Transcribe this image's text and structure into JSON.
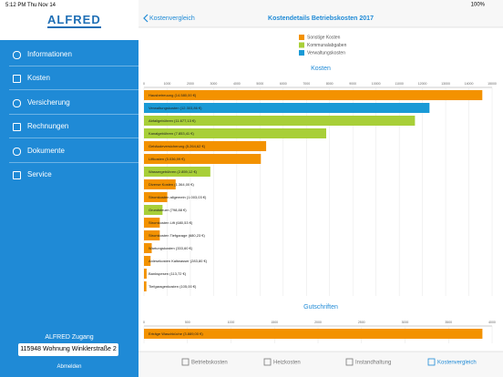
{
  "status_bar": {
    "time": "5:12 PM",
    "date": "Thu Nov 14",
    "battery": "100%"
  },
  "sidebar": {
    "logo": "ALFRED",
    "menu": [
      "Informationen",
      "Kosten",
      "Versicherung",
      "Rechnungen",
      "Dokumente",
      "Service"
    ],
    "account_title": "ALFRED Zugang",
    "unit": "115948 Wohnung Winklerstraße 2",
    "logout": "Abmelden"
  },
  "header": {
    "back": "Kostenvergleich",
    "title": "Kostendetails Betriebskosten 2017"
  },
  "legend": [
    {
      "name": "Sonstige Kosten",
      "color": "#f39200"
    },
    {
      "name": "Kommunalabgaben",
      "color": "#a8cf38"
    },
    {
      "name": "Verwaltungskosten",
      "color": "#1a9ad6"
    }
  ],
  "charts": [
    {
      "type": "bar",
      "title": "Kosten",
      "orientation": "horizontal",
      "values": [
        14580,
        12303.86,
        11677.13,
        7853.41,
        5264.62,
        5036.99,
        2859.12,
        1364,
        1003.03,
        798.88,
        680.53,
        680.23,
        333.6,
        283.8,
        113.72,
        105
      ],
      "value_labels": [
        "Hausbetreuung (14.580,00 €)",
        "Verwaltungskosten (12.303,86 €)",
        "Abfallgebühren (11.677,13 €)",
        "Kanalgebühren (7.853,41 €)",
        "Gebäudeversicherung (5.264,62 €)",
        "Liftkosten (5.036,99 €)",
        "Wassergebühren (2.859,12 €)",
        "Diverse Kosten (1.364,00 €)",
        "Stromkosten allgemein (1.003,03 €)",
        "Grundsteuer (798,88 €)",
        "Stromkosten Lift (680,53 €)",
        "Stromkosten Tiefgarage (680,23 €)",
        "Wartungskosten (333,60 €)",
        "Anlesekosten Kaltwasser (283,80 €)",
        "Bankspesen (113,72 €)",
        "Tiefgaragenkosten (105,00 €)"
      ],
      "colors": [
        "#f39200",
        "#1a9ad6",
        "#a8cf38",
        "#a8cf38",
        "#f39200",
        "#f39200",
        "#a8cf38",
        "#f39200",
        "#f39200",
        "#a8cf38",
        "#f39200",
        "#f39200",
        "#f39200",
        "#f39200",
        "#f39200",
        "#f39200"
      ],
      "xlim": [
        0,
        15000
      ],
      "xticks": [
        0,
        1000,
        2000,
        3000,
        4000,
        5000,
        6000,
        7000,
        8000,
        9000,
        10000,
        11000,
        12000,
        13000,
        14000,
        15000
      ],
      "grid": true
    },
    {
      "type": "bar",
      "title": "Gutschriften",
      "orientation": "horizontal",
      "values": [
        3889
      ],
      "value_labels": [
        "Erträge Waschküche (3.889,00 €)"
      ],
      "colors": [
        "#f39200"
      ],
      "xlim": [
        0,
        4000
      ],
      "xticks": [
        0,
        500,
        1000,
        1500,
        2000,
        2500,
        3000,
        3500,
        4000
      ],
      "grid": true
    }
  ],
  "tab_bar": {
    "items": [
      "Betriebskosten",
      "Heizkosten",
      "Instandhaltung",
      "Kostenvergleich"
    ],
    "active": 3
  }
}
